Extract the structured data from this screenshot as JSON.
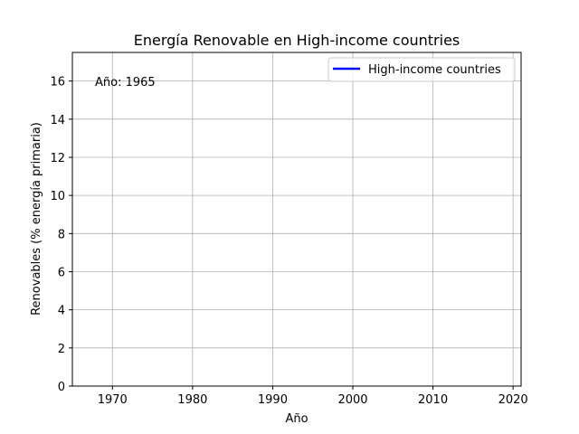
{
  "chart_data": {
    "type": "line",
    "title": "Energía Renovable en High-income countries",
    "xlabel": "Año",
    "ylabel": "Renovables (% energía primaria)",
    "xlim": [
      1965,
      2021
    ],
    "ylim": [
      0,
      17.5
    ],
    "xticks": [
      1970,
      1980,
      1990,
      2000,
      2010,
      2020
    ],
    "yticks": [
      0,
      2,
      4,
      6,
      8,
      10,
      12,
      14,
      16
    ],
    "grid": true,
    "legend_position": "top-right",
    "annotation": "Año: 1965",
    "series": [
      {
        "name": "High-income countries",
        "color": "#0000ff",
        "x": [],
        "y": []
      }
    ]
  }
}
